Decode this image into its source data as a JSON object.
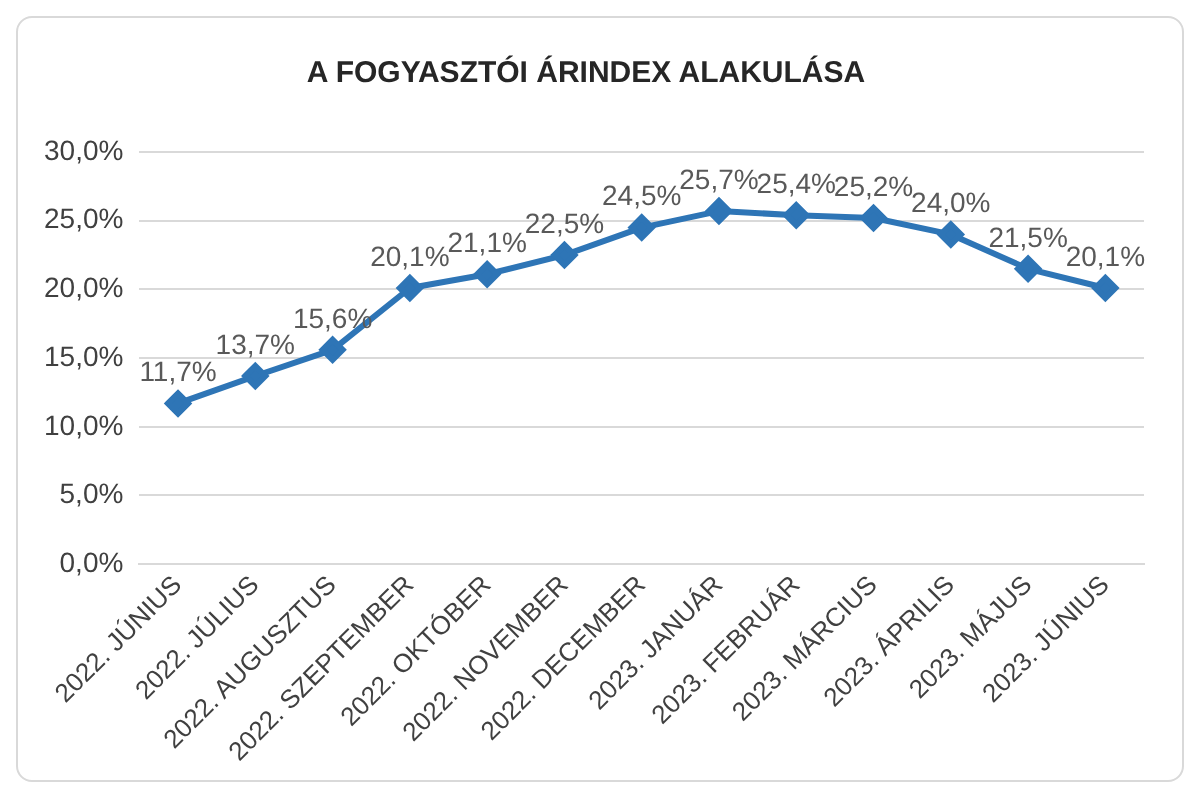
{
  "chart_data": {
    "type": "line",
    "title": "A FOGYASZTÓI ÁRINDEX ALAKULÁSA",
    "categories": [
      "2022. JÚNIUS",
      "2022. JÚLIUS",
      "2022. AUGUSZTUS",
      "2022. SZEPTEMBER",
      "2022. OKTÓBER",
      "2022. NOVEMBER",
      "2022. DECEMBER",
      "2023. JANUÁR",
      "2023. FEBRUÁR",
      "2023. MÁRCIUS",
      "2023. ÁPRILIS",
      "2023. MÁJUS",
      "2023. JÚNIUS"
    ],
    "series": [
      {
        "color": "#2e75b6",
        "values": [
          11.7,
          13.7,
          15.6,
          20.1,
          21.1,
          22.5,
          24.5,
          25.7,
          25.4,
          25.2,
          24.0,
          21.5,
          20.1
        ],
        "value_labels": [
          "11,7%",
          "13,7%",
          "15,6%",
          "20,1%",
          "21,1%",
          "22,5%",
          "24,5%",
          "25,7%",
          "25,4%",
          "25,2%",
          "24,0%",
          "21,5%",
          "20,1%"
        ]
      }
    ],
    "ylim": [
      0,
      30
    ],
    "yticks": [
      {
        "value": 0,
        "label": "0,0%"
      },
      {
        "value": 5,
        "label": "5,0%"
      },
      {
        "value": 10,
        "label": "10,0%"
      },
      {
        "value": 15,
        "label": "15,0%"
      },
      {
        "value": 20,
        "label": "20,0%"
      },
      {
        "value": 25,
        "label": "25,0%"
      },
      {
        "value": 30,
        "label": "30,0%"
      }
    ],
    "grid": "y",
    "legend": false,
    "marker": "diamond",
    "line_style": "solid"
  }
}
